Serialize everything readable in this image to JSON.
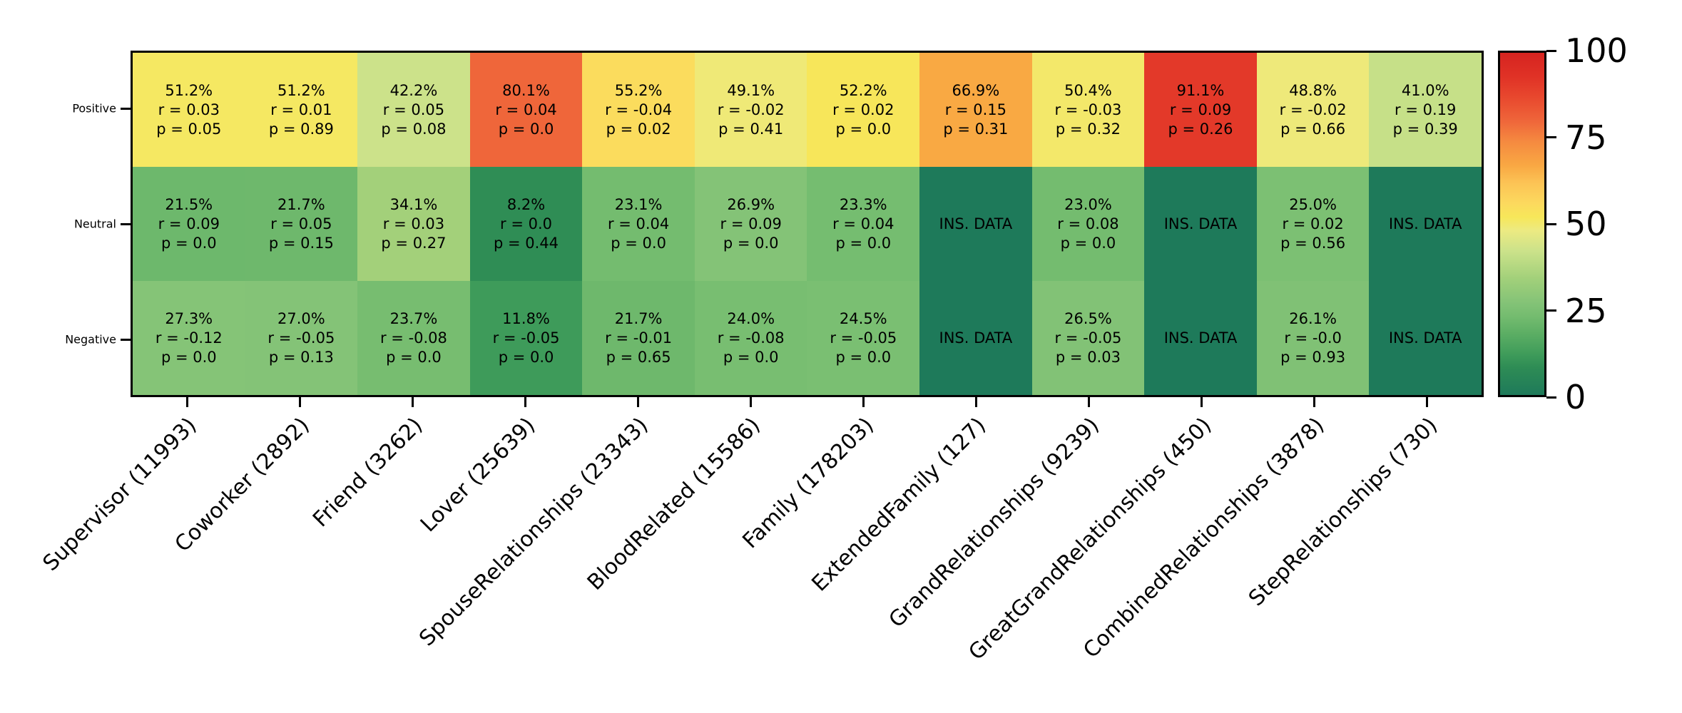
{
  "chart_data": {
    "type": "heatmap",
    "rows": [
      "Positive",
      "Neutral",
      "Negative"
    ],
    "columns": [
      "Supervisor (11993)",
      "Coworker (2892)",
      "Friend (3262)",
      "Lover (25639)",
      "SpouseRelationships (23343)",
      "BloodRelated (15586)",
      "Family (178203)",
      "ExtendedFamily (127)",
      "GrandRelationships (9239)",
      "GreatGrandRelationships (450)",
      "CombinedRelationships (3878)",
      "StepRelationships (730)"
    ],
    "no_data_label": "INS. DATA",
    "cells": [
      [
        {
          "value": 51.2,
          "lines": [
            "51.2%",
            "r = 0.03",
            "p = 0.05"
          ]
        },
        {
          "value": 51.2,
          "lines": [
            "51.2%",
            "r = 0.01",
            "p = 0.89"
          ]
        },
        {
          "value": 42.2,
          "lines": [
            "42.2%",
            "r = 0.05",
            "p = 0.08"
          ]
        },
        {
          "value": 80.1,
          "lines": [
            "80.1%",
            "r = 0.04",
            "p = 0.0"
          ]
        },
        {
          "value": 55.2,
          "lines": [
            "55.2%",
            "r = -0.04",
            "p = 0.02"
          ]
        },
        {
          "value": 49.1,
          "lines": [
            "49.1%",
            "r = -0.02",
            "p = 0.41"
          ]
        },
        {
          "value": 52.2,
          "lines": [
            "52.2%",
            "r = 0.02",
            "p = 0.0"
          ]
        },
        {
          "value": 66.9,
          "lines": [
            "66.9%",
            "r = 0.15",
            "p = 0.31"
          ]
        },
        {
          "value": 50.4,
          "lines": [
            "50.4%",
            "r = -0.03",
            "p = 0.32"
          ]
        },
        {
          "value": 91.1,
          "lines": [
            "91.1%",
            "r = 0.09",
            "p = 0.26"
          ]
        },
        {
          "value": 48.8,
          "lines": [
            "48.8%",
            "r = -0.02",
            "p = 0.66"
          ]
        },
        {
          "value": 41.0,
          "lines": [
            "41.0%",
            "r = 0.19",
            "p = 0.39"
          ]
        }
      ],
      [
        {
          "value": 21.5,
          "lines": [
            "21.5%",
            "r = 0.09",
            "p = 0.0"
          ]
        },
        {
          "value": 21.7,
          "lines": [
            "21.7%",
            "r = 0.05",
            "p = 0.15"
          ]
        },
        {
          "value": 34.1,
          "lines": [
            "34.1%",
            "r = 0.03",
            "p = 0.27"
          ]
        },
        {
          "value": 8.2,
          "lines": [
            "8.2%",
            "r = 0.0",
            "p = 0.44"
          ]
        },
        {
          "value": 23.1,
          "lines": [
            "23.1%",
            "r = 0.04",
            "p = 0.0"
          ]
        },
        {
          "value": 26.9,
          "lines": [
            "26.9%",
            "r = 0.09",
            "p = 0.0"
          ]
        },
        {
          "value": 23.3,
          "lines": [
            "23.3%",
            "r = 0.04",
            "p = 0.0"
          ]
        },
        {
          "value": 0,
          "lines": [
            "INS. DATA"
          ]
        },
        {
          "value": 23.0,
          "lines": [
            "23.0%",
            "r = 0.08",
            "p = 0.0"
          ]
        },
        {
          "value": 0,
          "lines": [
            "INS. DATA"
          ]
        },
        {
          "value": 25.0,
          "lines": [
            "25.0%",
            "r = 0.02",
            "p = 0.56"
          ]
        },
        {
          "value": 0,
          "lines": [
            "INS. DATA"
          ]
        }
      ],
      [
        {
          "value": 27.3,
          "lines": [
            "27.3%",
            "r = -0.12",
            "p = 0.0"
          ]
        },
        {
          "value": 27.0,
          "lines": [
            "27.0%",
            "r = -0.05",
            "p = 0.13"
          ]
        },
        {
          "value": 23.7,
          "lines": [
            "23.7%",
            "r = -0.08",
            "p = 0.0"
          ]
        },
        {
          "value": 11.8,
          "lines": [
            "11.8%",
            "r = -0.05",
            "p = 0.0"
          ]
        },
        {
          "value": 21.7,
          "lines": [
            "21.7%",
            "r = -0.01",
            "p = 0.65"
          ]
        },
        {
          "value": 24.0,
          "lines": [
            "24.0%",
            "r = -0.08",
            "p = 0.0"
          ]
        },
        {
          "value": 24.5,
          "lines": [
            "24.5%",
            "r = -0.05",
            "p = 0.0"
          ]
        },
        {
          "value": 0,
          "lines": [
            "INS. DATA"
          ]
        },
        {
          "value": 26.5,
          "lines": [
            "26.5%",
            "r = -0.05",
            "p = 0.03"
          ]
        },
        {
          "value": 0,
          "lines": [
            "INS. DATA"
          ]
        },
        {
          "value": 26.1,
          "lines": [
            "26.1%",
            "r = -0.0",
            "p = 0.93"
          ]
        },
        {
          "value": 0,
          "lines": [
            "INS. DATA"
          ]
        }
      ]
    ],
    "colorbar": {
      "min": 0,
      "max": 100,
      "ticks": [
        100,
        75,
        50,
        25,
        0
      ]
    },
    "colormap": {
      "name": "red-yellow-green-reversed",
      "stops": [
        [
          0.0,
          "#1e7a5a"
        ],
        [
          0.08,
          "#2e8c55"
        ],
        [
          0.12,
          "#3f9c5a"
        ],
        [
          0.18,
          "#5cae64"
        ],
        [
          0.23,
          "#74bc6f"
        ],
        [
          0.27,
          "#84c377"
        ],
        [
          0.34,
          "#a2d07a"
        ],
        [
          0.42,
          "#cbe28a"
        ],
        [
          0.48,
          "#ecea82"
        ],
        [
          0.52,
          "#f7e75a"
        ],
        [
          0.56,
          "#fcd95e"
        ],
        [
          0.62,
          "#fcc355"
        ],
        [
          0.67,
          "#f9a843"
        ],
        [
          0.74,
          "#f58a40"
        ],
        [
          0.8,
          "#ef663a"
        ],
        [
          0.87,
          "#e8482e"
        ],
        [
          0.93,
          "#e03226"
        ],
        [
          1.0,
          "#d62420"
        ]
      ]
    }
  }
}
